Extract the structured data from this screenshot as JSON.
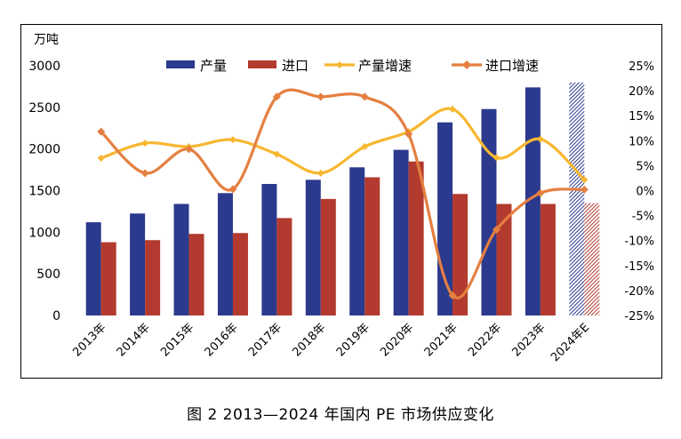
{
  "caption": "图 2  2013—2024 年国内 PE 市场供应变化",
  "colors": {
    "production": "#2b3a8c",
    "import": "#b33a2e",
    "production_growth": "#f7b731",
    "import_growth": "#e57f40"
  },
  "chart_data": {
    "type": "bar",
    "title": "",
    "ylabel_left": "万吨",
    "ylabel_right": "",
    "categories": [
      "2013年",
      "2014年",
      "2015年",
      "2016年",
      "2017年",
      "2018年",
      "2019年",
      "2020年",
      "2021年",
      "2022年",
      "2023年",
      "2024年E"
    ],
    "ylim_left": [
      0,
      3000
    ],
    "yticks_left": [
      "0",
      "500",
      "1000",
      "1500",
      "2000",
      "2500",
      "3000"
    ],
    "ylim_right": [
      -25,
      25
    ],
    "yticks_right": [
      "-25%",
      "-20%",
      "-15%",
      "-10%",
      "-5%",
      "0%",
      "5%",
      "10%",
      "15%",
      "20%",
      "25%"
    ],
    "legend_position": "top",
    "legend": [
      "产量",
      "进口",
      "产量增速",
      "进口增速"
    ],
    "series": [
      {
        "name": "产量",
        "type": "bar",
        "axis": "left",
        "values": [
          1120,
          1225,
          1340,
          1470,
          1580,
          1630,
          1780,
          1990,
          2320,
          2480,
          2740,
          2800
        ]
      },
      {
        "name": "进口",
        "type": "bar",
        "axis": "left",
        "values": [
          880,
          905,
          980,
          990,
          1170,
          1400,
          1660,
          1850,
          1460,
          1340,
          1340,
          1350
        ]
      },
      {
        "name": "产量增速",
        "type": "line",
        "axis": "right",
        "values": [
          6.5,
          9.5,
          8.8,
          10.2,
          7.3,
          3.5,
          8.8,
          11.8,
          16.3,
          6.6,
          10.3,
          2.2
        ]
      },
      {
        "name": "进口增速",
        "type": "line",
        "axis": "right",
        "values": [
          11.8,
          3.5,
          8.3,
          0.3,
          18.8,
          18.8,
          18.8,
          11.3,
          -21.0,
          -7.8,
          -0.5,
          0.2
        ]
      }
    ],
    "estimate_category": "2024年E",
    "grid": false
  }
}
